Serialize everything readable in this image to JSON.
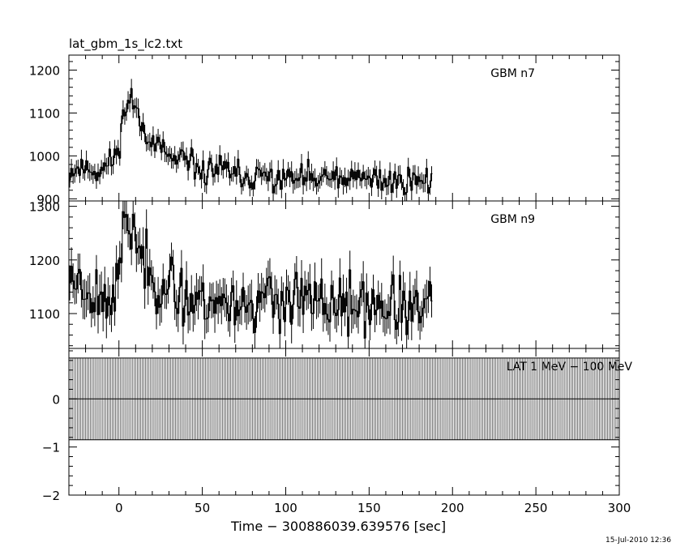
{
  "page": {
    "file_title": "lat_gbm_1s_lc2.txt",
    "timestamp": "15-Jul-2010 12:36"
  },
  "chart_data": {
    "type": "line",
    "xlabel": "Time − 300886039.639576 [sec]",
    "xlim": [
      -30,
      300
    ],
    "xticks": [
      0,
      50,
      100,
      150,
      200,
      250,
      300
    ],
    "panels": [
      {
        "name": "GBM n7",
        "ylim": [
          895,
          1235
        ],
        "yticks": [
          900,
          1000,
          1100,
          1200
        ],
        "x_range": [
          -30,
          187
        ],
        "profile": [
          [
            -30,
            965
          ],
          [
            -20,
            975
          ],
          [
            -12,
            962
          ],
          [
            -6,
            982
          ],
          [
            -2,
            1005
          ],
          [
            1,
            1060
          ],
          [
            4,
            1125
          ],
          [
            7,
            1135
          ],
          [
            10,
            1105
          ],
          [
            14,
            1075
          ],
          [
            18,
            1045
          ],
          [
            24,
            1010
          ],
          [
            30,
            995
          ],
          [
            40,
            978
          ],
          [
            50,
            965
          ],
          [
            62,
            970
          ],
          [
            70,
            950
          ],
          [
            90,
            948
          ],
          [
            120,
            945
          ],
          [
            150,
            944
          ],
          [
            187,
            942
          ]
        ],
        "noise_amp": 30,
        "seed": 11
      },
      {
        "name": "GBM n9",
        "ylim": [
          1035,
          1310
        ],
        "yticks": [
          1100,
          1200,
          1300
        ],
        "x_range": [
          -30,
          187
        ],
        "profile": [
          [
            -30,
            1175
          ],
          [
            -20,
            1150
          ],
          [
            -12,
            1130
          ],
          [
            -6,
            1130
          ],
          [
            -2,
            1150
          ],
          [
            1,
            1215
          ],
          [
            4,
            1265
          ],
          [
            7,
            1260
          ],
          [
            10,
            1235
          ],
          [
            14,
            1200
          ],
          [
            20,
            1170
          ],
          [
            30,
            1140
          ],
          [
            50,
            1125
          ],
          [
            70,
            1120
          ],
          [
            100,
            1125
          ],
          [
            130,
            1115
          ],
          [
            160,
            1110
          ],
          [
            187,
            1105
          ]
        ],
        "noise_amp": 48,
        "seed": 23
      },
      {
        "name": "LAT 1 MeV − 100 MeV",
        "ylim": [
          -2,
          1.05
        ],
        "yticks": [
          -2,
          -1,
          0
        ],
        "x_range": [
          -30,
          300
        ],
        "band": [
          -0.85,
          0.85
        ],
        "step": 1
      }
    ]
  }
}
